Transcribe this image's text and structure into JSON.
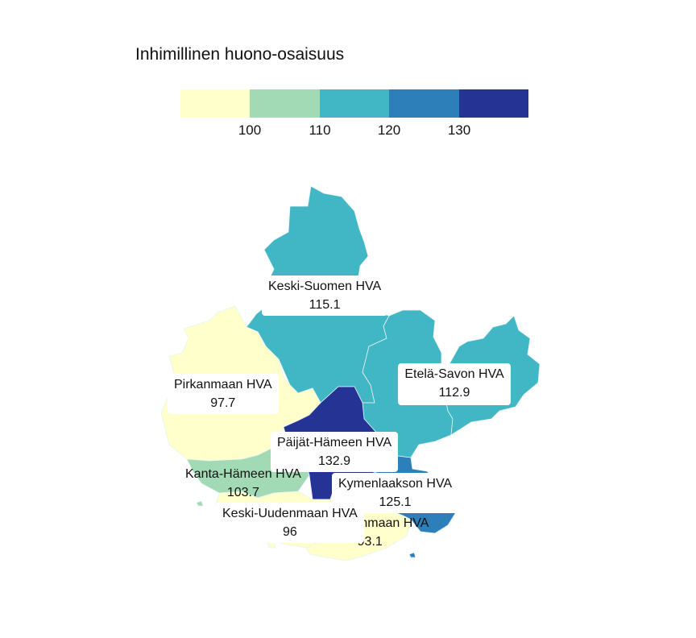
{
  "legend": {
    "title": "Inhimillinen huono-osaisuus",
    "colors": [
      "#ffffcc",
      "#a1dab4",
      "#41b6c4",
      "#2c7fb8",
      "#253494"
    ],
    "ticks": [
      "100",
      "110",
      "120",
      "130"
    ]
  },
  "regions": [
    {
      "id": "keski-suomi",
      "name": "Keski-Suomen HVA",
      "value": "115.1",
      "color": "#41b6c4"
    },
    {
      "id": "pirkanmaa",
      "name": "Pirkanmaan HVA",
      "value": "97.7",
      "color": "#ffffcc"
    },
    {
      "id": "etela-savo",
      "name": "Etelä-Savon HVA",
      "value": "112.9",
      "color": "#41b6c4"
    },
    {
      "id": "paijat-hame",
      "name": "Päijät-Hämeen HVA",
      "value": "132.9",
      "color": "#253494"
    },
    {
      "id": "kanta-hame",
      "name": "Kanta-Hämeen HVA",
      "value": "103.7",
      "color": "#a1dab4"
    },
    {
      "id": "kymenlaakso",
      "name": "Kymenlaakson HVA",
      "value": "125.1",
      "color": "#2c7fb8"
    },
    {
      "id": "keski-uusimaa",
      "name": "Keski-Uudenmaan HVA",
      "value": "96",
      "color": "#ffffcc"
    },
    {
      "id": "ita-uusimaa",
      "name": "Itä-Uudenmaan HVA",
      "value": "93.1",
      "color": "#ffffcc"
    }
  ]
}
